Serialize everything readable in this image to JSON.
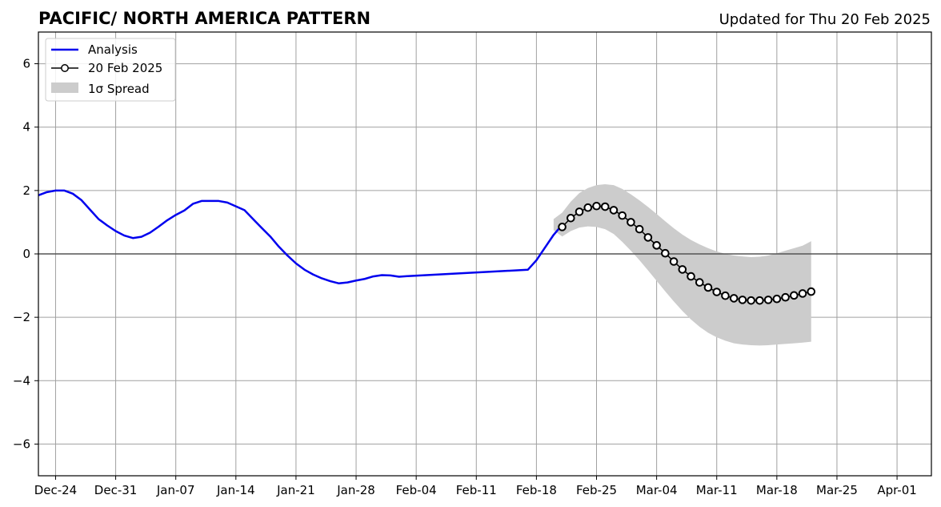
{
  "chart_data": {
    "type": "line",
    "title": "PACIFIC/ NORTH AMERICA PATTERN",
    "subtitle": "Updated for Thu 20 Feb 2025",
    "xlabel": "",
    "ylabel": "",
    "x_axis": {
      "type": "date",
      "range": [
        "2024-12-22",
        "2025-04-05"
      ],
      "tick_dates": [
        "2024-12-24",
        "2024-12-31",
        "2025-01-07",
        "2025-01-14",
        "2025-01-21",
        "2025-01-28",
        "2025-02-04",
        "2025-02-11",
        "2025-02-18",
        "2025-02-25",
        "2025-03-04",
        "2025-03-11",
        "2025-03-18",
        "2025-03-25",
        "2025-04-01"
      ],
      "tick_labels": [
        "Dec-24",
        "Dec-31",
        "Jan-07",
        "Jan-14",
        "Jan-21",
        "Jan-28",
        "Feb-04",
        "Feb-11",
        "Feb-18",
        "Feb-25",
        "Mar-04",
        "Mar-11",
        "Mar-18",
        "Mar-25",
        "Apr-01"
      ]
    },
    "y_axis": {
      "range": [
        -7,
        7
      ],
      "ticks": [
        -6,
        -4,
        -2,
        0,
        2,
        4,
        6
      ],
      "tick_labels": [
        "−6",
        "−4",
        "−2",
        "0",
        "2",
        "4",
        "6"
      ]
    },
    "grid": true,
    "legend_position": "top-left",
    "colors": {
      "analysis": "#0000ee",
      "forecast_marker_fill": "#ffffff",
      "forecast_marker_edge": "#000000",
      "spread": "#cccccc",
      "grid": "#a0a0a0",
      "zero_line": "#555555"
    },
    "series": [
      {
        "name": "Analysis",
        "style": "line",
        "points": [
          [
            "2024-12-22",
            1.85
          ],
          [
            "2024-12-23",
            1.95
          ],
          [
            "2024-12-24",
            2.0
          ],
          [
            "2024-12-25",
            2.0
          ],
          [
            "2024-12-26",
            1.9
          ],
          [
            "2024-12-27",
            1.7
          ],
          [
            "2024-12-28",
            1.4
          ],
          [
            "2024-12-29",
            1.1
          ],
          [
            "2024-12-30",
            0.9
          ],
          [
            "2024-12-31",
            0.72
          ],
          [
            "2025-01-01",
            0.58
          ],
          [
            "2025-01-02",
            0.5
          ],
          [
            "2025-01-03",
            0.54
          ],
          [
            "2025-01-04",
            0.67
          ],
          [
            "2025-01-05",
            0.86
          ],
          [
            "2025-01-06",
            1.06
          ],
          [
            "2025-01-07",
            1.23
          ],
          [
            "2025-01-08",
            1.37
          ],
          [
            "2025-01-09",
            1.58
          ],
          [
            "2025-01-10",
            1.67
          ],
          [
            "2025-01-11",
            1.67
          ],
          [
            "2025-01-12",
            1.67
          ],
          [
            "2025-01-13",
            1.62
          ],
          [
            "2025-01-14",
            1.5
          ],
          [
            "2025-01-15",
            1.38
          ],
          [
            "2025-01-16",
            1.1
          ],
          [
            "2025-01-17",
            0.82
          ],
          [
            "2025-01-18",
            0.55
          ],
          [
            "2025-01-19",
            0.23
          ],
          [
            "2025-01-20",
            -0.05
          ],
          [
            "2025-01-21",
            -0.3
          ],
          [
            "2025-01-22",
            -0.5
          ],
          [
            "2025-01-23",
            -0.65
          ],
          [
            "2025-01-24",
            -0.77
          ],
          [
            "2025-01-25",
            -0.86
          ],
          [
            "2025-01-26",
            -0.93
          ],
          [
            "2025-01-27",
            -0.9
          ],
          [
            "2025-01-28",
            -0.84
          ],
          [
            "2025-01-29",
            -0.79
          ],
          [
            "2025-01-30",
            -0.71
          ],
          [
            "2025-01-31",
            -0.67
          ],
          [
            "2025-02-01",
            -0.68
          ],
          [
            "2025-02-02",
            -0.72
          ],
          [
            "2025-02-03",
            -0.7
          ],
          [
            "2025-02-17",
            -0.5
          ],
          [
            "2025-02-18",
            -0.2
          ],
          [
            "2025-02-19",
            0.2
          ],
          [
            "2025-02-20",
            0.6
          ],
          [
            "2025-02-21",
            0.92
          ]
        ]
      },
      {
        "name": "20 Feb 2025",
        "style": "line-with-markers",
        "points": [
          [
            "2025-02-21",
            0.85
          ],
          [
            "2025-02-22",
            1.13
          ],
          [
            "2025-02-23",
            1.33
          ],
          [
            "2025-02-24",
            1.46
          ],
          [
            "2025-02-25",
            1.51
          ],
          [
            "2025-02-26",
            1.49
          ],
          [
            "2025-02-27",
            1.38
          ],
          [
            "2025-02-28",
            1.21
          ],
          [
            "2025-03-01",
            1.0
          ],
          [
            "2025-03-02",
            0.78
          ],
          [
            "2025-03-03",
            0.52
          ],
          [
            "2025-03-04",
            0.27
          ],
          [
            "2025-03-05",
            0.02
          ],
          [
            "2025-03-06",
            -0.24
          ],
          [
            "2025-03-07",
            -0.49
          ],
          [
            "2025-03-08",
            -0.71
          ],
          [
            "2025-03-09",
            -0.9
          ],
          [
            "2025-03-10",
            -1.06
          ],
          [
            "2025-03-11",
            -1.2
          ],
          [
            "2025-03-12",
            -1.32
          ],
          [
            "2025-03-13",
            -1.4
          ],
          [
            "2025-03-14",
            -1.45
          ],
          [
            "2025-03-15",
            -1.47
          ],
          [
            "2025-03-16",
            -1.47
          ],
          [
            "2025-03-17",
            -1.45
          ],
          [
            "2025-03-18",
            -1.42
          ],
          [
            "2025-03-19",
            -1.37
          ],
          [
            "2025-03-20",
            -1.31
          ],
          [
            "2025-03-21",
            -1.25
          ],
          [
            "2025-03-22",
            -1.19
          ]
        ]
      },
      {
        "name": "1σ Spread",
        "style": "band",
        "upper": [
          [
            "2025-02-20",
            1.1
          ],
          [
            "2025-02-21",
            1.3
          ],
          [
            "2025-02-22",
            1.65
          ],
          [
            "2025-02-23",
            1.92
          ],
          [
            "2025-02-24",
            2.08
          ],
          [
            "2025-02-25",
            2.17
          ],
          [
            "2025-02-26",
            2.2
          ],
          [
            "2025-02-27",
            2.17
          ],
          [
            "2025-02-28",
            2.05
          ],
          [
            "2025-03-01",
            1.88
          ],
          [
            "2025-03-02",
            1.69
          ],
          [
            "2025-03-03",
            1.48
          ],
          [
            "2025-03-04",
            1.26
          ],
          [
            "2025-03-05",
            1.03
          ],
          [
            "2025-03-06",
            0.81
          ],
          [
            "2025-03-07",
            0.61
          ],
          [
            "2025-03-08",
            0.44
          ],
          [
            "2025-03-09",
            0.3
          ],
          [
            "2025-03-10",
            0.18
          ],
          [
            "2025-03-11",
            0.08
          ],
          [
            "2025-03-12",
            0.0
          ],
          [
            "2025-03-13",
            -0.05
          ],
          [
            "2025-03-14",
            -0.08
          ],
          [
            "2025-03-15",
            -0.1
          ],
          [
            "2025-03-16",
            -0.09
          ],
          [
            "2025-03-17",
            -0.05
          ],
          [
            "2025-03-18",
            0.02
          ],
          [
            "2025-03-19",
            0.1
          ],
          [
            "2025-03-20",
            0.18
          ],
          [
            "2025-03-21",
            0.26
          ],
          [
            "2025-03-22",
            0.4
          ]
        ],
        "lower": [
          [
            "2025-02-20",
            0.75
          ],
          [
            "2025-02-21",
            0.55
          ],
          [
            "2025-02-22",
            0.72
          ],
          [
            "2025-02-23",
            0.83
          ],
          [
            "2025-02-24",
            0.87
          ],
          [
            "2025-02-25",
            0.85
          ],
          [
            "2025-02-26",
            0.78
          ],
          [
            "2025-02-27",
            0.63
          ],
          [
            "2025-02-28",
            0.38
          ],
          [
            "2025-03-01",
            0.1
          ],
          [
            "2025-03-02",
            -0.2
          ],
          [
            "2025-03-03",
            -0.52
          ],
          [
            "2025-03-04",
            -0.85
          ],
          [
            "2025-03-05",
            -1.18
          ],
          [
            "2025-03-06",
            -1.5
          ],
          [
            "2025-03-07",
            -1.8
          ],
          [
            "2025-03-08",
            -2.07
          ],
          [
            "2025-03-09",
            -2.3
          ],
          [
            "2025-03-10",
            -2.49
          ],
          [
            "2025-03-11",
            -2.63
          ],
          [
            "2025-03-12",
            -2.74
          ],
          [
            "2025-03-13",
            -2.82
          ],
          [
            "2025-03-14",
            -2.86
          ],
          [
            "2025-03-15",
            -2.88
          ],
          [
            "2025-03-16",
            -2.89
          ],
          [
            "2025-03-17",
            -2.88
          ],
          [
            "2025-03-18",
            -2.86
          ],
          [
            "2025-03-19",
            -2.84
          ],
          [
            "2025-03-20",
            -2.82
          ],
          [
            "2025-03-21",
            -2.8
          ],
          [
            "2025-03-22",
            -2.77
          ]
        ]
      }
    ],
    "legend": [
      {
        "label": "Analysis",
        "icon": "blue-line-icon"
      },
      {
        "label": "20 Feb 2025",
        "icon": "line-with-circle-marker-icon"
      },
      {
        "label": "1σ Spread",
        "icon": "gray-patch-icon"
      }
    ]
  }
}
